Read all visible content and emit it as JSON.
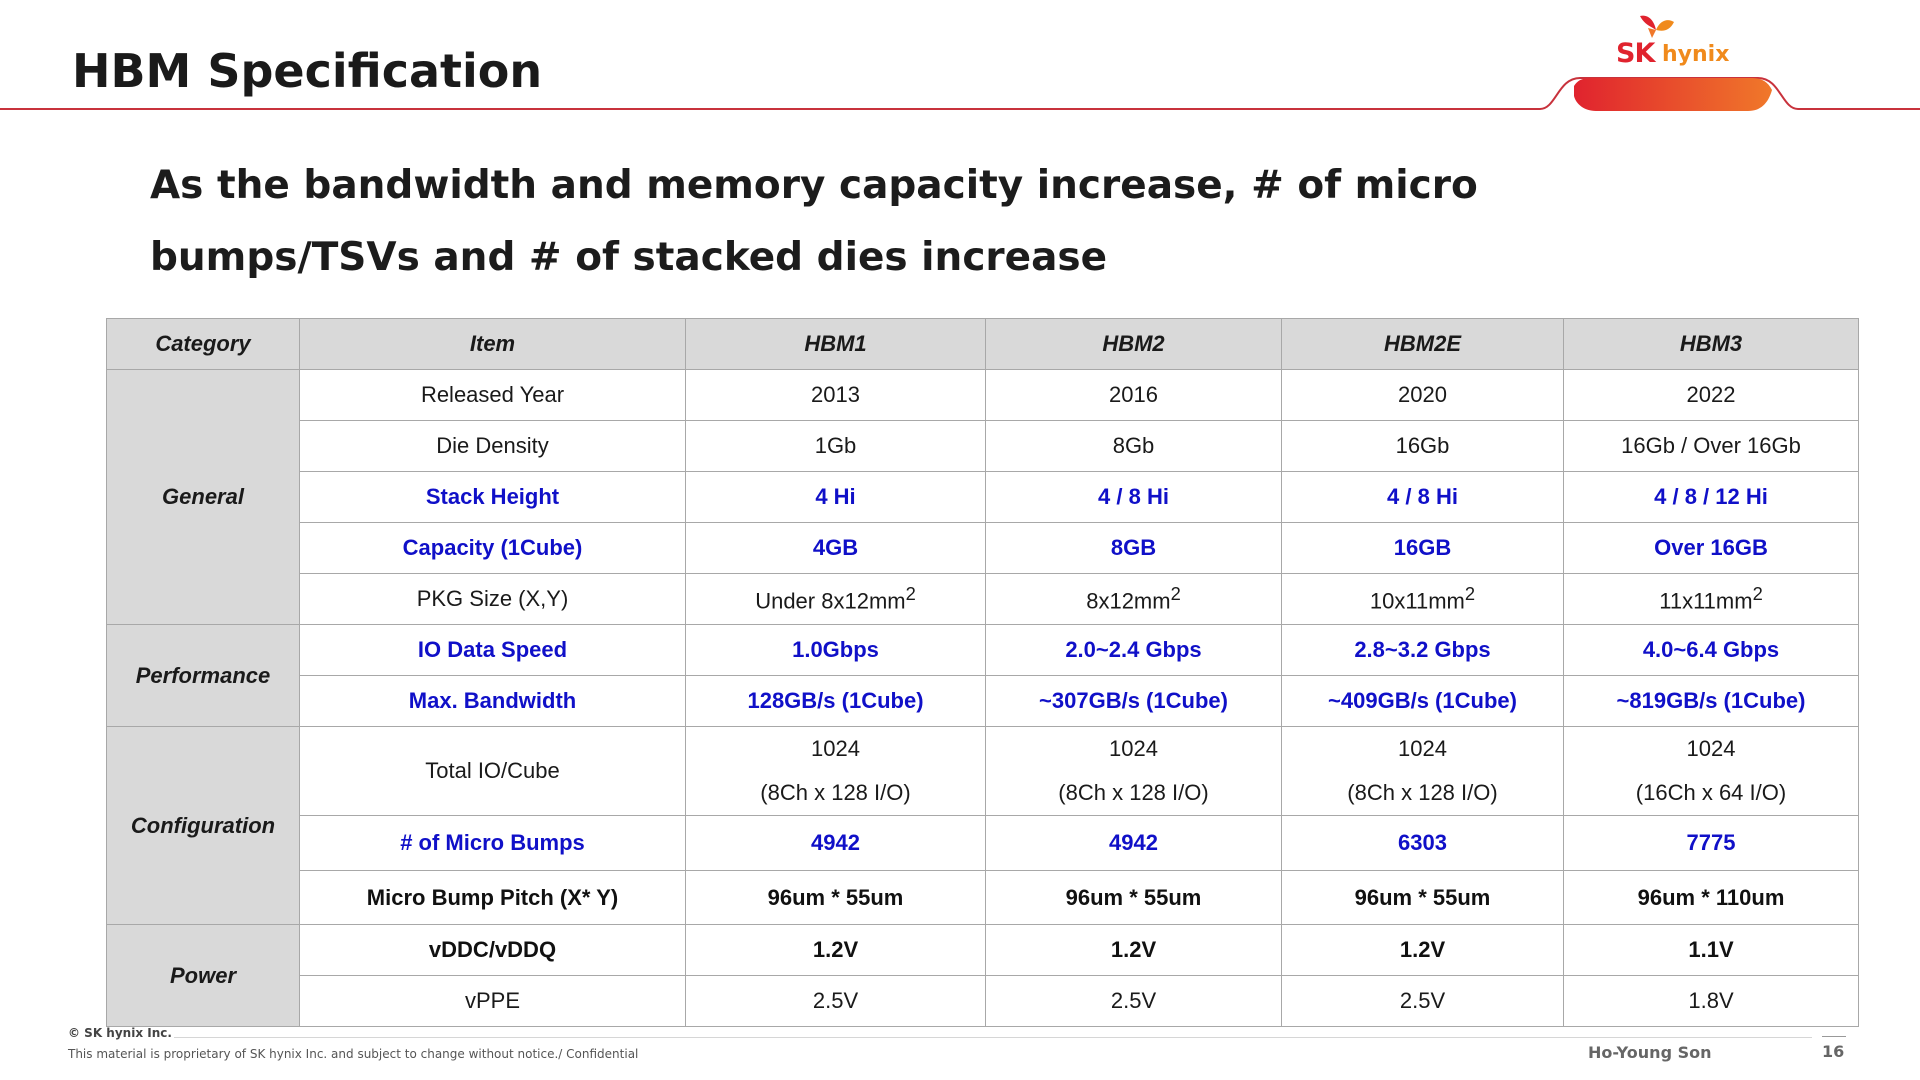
{
  "slide": {
    "title": "HBM Specification",
    "subtitle": "As the bandwidth and memory capacity increase, # of micro bumps/TSVs and # of stacked dies increase"
  },
  "logo": {
    "sk": "SK",
    "hynix": "hynix",
    "colors": {
      "red": "#e0232e",
      "orange": "#f08a1c"
    }
  },
  "table": {
    "headers": [
      "Category",
      "Item",
      "HBM1",
      "HBM2",
      "HBM2E",
      "HBM3"
    ],
    "categories": [
      "General",
      "Performance",
      "Configuration",
      "Power"
    ],
    "rows": [
      {
        "item": "Released Year",
        "values": [
          "2013",
          "2016",
          "2020",
          "2022"
        ],
        "style": "plain"
      },
      {
        "item": "Die Density",
        "values": [
          "1Gb",
          "8Gb",
          "16Gb",
          "16Gb / Over 16Gb"
        ],
        "style": "plain"
      },
      {
        "item": "Stack Height",
        "values": [
          "4 Hi",
          "4 / 8 Hi",
          "4 / 8 Hi",
          "4 / 8 / 12 Hi"
        ],
        "style": "blue"
      },
      {
        "item": "Capacity (1Cube)",
        "values": [
          "4GB",
          "8GB",
          "16GB",
          "Over 16GB"
        ],
        "style": "blue"
      },
      {
        "item": "PKG Size (X,Y)",
        "values": [
          "Under 8x12mm",
          "8x12mm",
          "10x11mm",
          "11x11mm"
        ],
        "unit_sup": "2",
        "style": "plain"
      },
      {
        "item": "IO Data Speed",
        "values": [
          "1.0Gbps",
          "2.0~2.4 Gbps",
          "2.8~3.2 Gbps",
          "4.0~6.4 Gbps"
        ],
        "style": "blue"
      },
      {
        "item": "Max. Bandwidth",
        "values": [
          "128GB/s (1Cube)",
          "~307GB/s (1Cube)",
          "~409GB/s (1Cube)",
          "~819GB/s (1Cube)"
        ],
        "style": "blue"
      },
      {
        "item": "Total IO/Cube",
        "values": [
          "1024",
          "1024",
          "1024",
          "1024"
        ],
        "values_line2": [
          "(8Ch x 128 I/O)",
          "(8Ch x 128 I/O)",
          "(8Ch x 128 I/O)",
          "(16Ch x 64 I/O)"
        ],
        "style": "plain"
      },
      {
        "item": "# of Micro Bumps",
        "values": [
          "4942",
          "4942",
          "6303",
          "7775"
        ],
        "style": "blue"
      },
      {
        "item": "Micro Bump Pitch (X* Y)",
        "values": [
          "96um * 55um",
          "96um * 55um",
          "96um * 55um",
          "96um * 110um"
        ],
        "style": "bold"
      },
      {
        "item": "vDDC/vDDQ",
        "values": [
          "1.2V",
          "1.2V",
          "1.2V",
          "1.1V"
        ],
        "style": "bold"
      },
      {
        "item": "vPPE",
        "values": [
          "2.5V",
          "2.5V",
          "2.5V",
          "1.8V"
        ],
        "style": "plain"
      }
    ]
  },
  "footer": {
    "copyright": "© SK hynix Inc.",
    "note": "This material is proprietary of SK hynix Inc. and subject to change without notice./ Confidential",
    "author": "Ho-Young Son",
    "page": "16"
  }
}
